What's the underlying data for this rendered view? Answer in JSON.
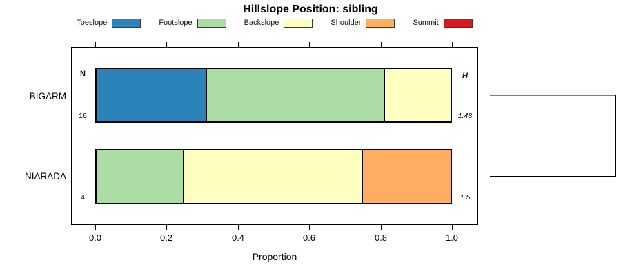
{
  "chart_data": {
    "type": "bar",
    "variant": "horizontal-stacked-proportion",
    "title": "Hillslope Position: sibling",
    "xlabel": "Proportion",
    "xlim": [
      0,
      1
    ],
    "x_ticks": [
      {
        "value": 0.0,
        "label": "0.0"
      },
      {
        "value": 0.2,
        "label": "0.2"
      },
      {
        "value": 0.4,
        "label": "0.4"
      },
      {
        "value": 0.6,
        "label": "0.6"
      },
      {
        "value": 0.8,
        "label": "0.8"
      },
      {
        "value": 1.0,
        "label": "1.0"
      }
    ],
    "grid": false,
    "legend_position": "top",
    "legend": [
      {
        "label": "Toeslope",
        "color": "#2B83BA"
      },
      {
        "label": "Footslope",
        "color": "#ABDDA4"
      },
      {
        "label": "Backslope",
        "color": "#FFFFBF"
      },
      {
        "label": "Shoulder",
        "color": "#FDAE61"
      },
      {
        "label": "Summit",
        "color": "#D7191C"
      }
    ],
    "column_headers": {
      "n": "N",
      "h": "H"
    },
    "categories": [
      "BIGARM",
      "NIARADA"
    ],
    "bars": [
      {
        "name": "BIGARM",
        "n": "16",
        "h": "1.48",
        "segments": [
          {
            "position": "Toeslope",
            "proportion": 0.3125
          },
          {
            "position": "Footslope",
            "proportion": 0.5
          },
          {
            "position": "Backslope",
            "proportion": 0.1875
          }
        ]
      },
      {
        "name": "NIARADA",
        "n": "4",
        "h": "1.5",
        "segments": [
          {
            "position": "Footslope",
            "proportion": 0.25
          },
          {
            "position": "Backslope",
            "proportion": 0.5
          },
          {
            "position": "Shoulder",
            "proportion": 0.25
          }
        ]
      }
    ],
    "dendrogram": {
      "present": true,
      "orientation": "right",
      "leaves": [
        "BIGARM",
        "NIARADA"
      ]
    }
  }
}
